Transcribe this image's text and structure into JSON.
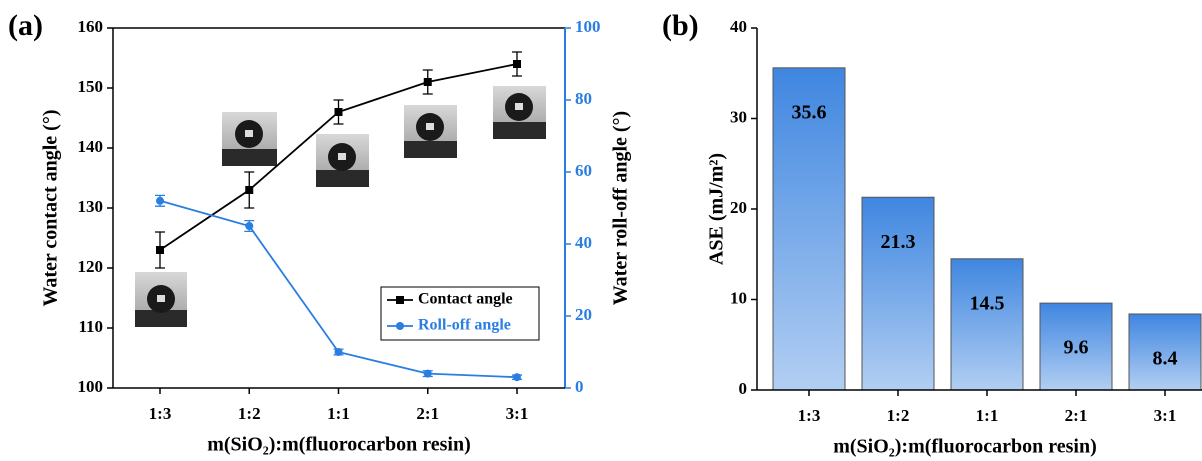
{
  "chart_data": [
    {
      "type": "line",
      "panel_label": "(a)",
      "x_label": "m(SiO₂):m(fluorocarbon resin)",
      "y_label": "Water contact angle (°)",
      "y2_label": "Water roll-off angle (°)",
      "categories": [
        "1:3",
        "1:2",
        "1:1",
        "2:1",
        "3:1"
      ],
      "ylim": [
        100,
        160
      ],
      "yticks": [
        100,
        110,
        120,
        130,
        140,
        150,
        160
      ],
      "y2lim": [
        0,
        100
      ],
      "y2ticks": [
        0,
        20,
        40,
        60,
        80,
        100
      ],
      "legend": "lower right",
      "series": [
        {
          "name": "Contact angle",
          "color": "#000000",
          "marker": "square",
          "values": [
            123,
            133,
            146,
            151,
            154
          ],
          "errors": [
            3,
            3,
            2,
            2,
            2
          ]
        },
        {
          "name": "Roll-off angle",
          "color": "#2a7de1",
          "marker": "circle",
          "axis": "y2",
          "values": [
            52,
            45,
            10,
            4,
            3
          ],
          "errors": [
            1.5,
            1.5,
            0.8,
            0.8,
            0.6
          ]
        }
      ]
    },
    {
      "type": "bar",
      "panel_label": "(b)",
      "x_label": "m(SiO₂):m(fluorocarbon resin)",
      "y_label": "ASE (mJ/m²)",
      "categories": [
        "1:3",
        "1:2",
        "1:1",
        "2:1",
        "3:1"
      ],
      "values": [
        35.6,
        21.3,
        14.5,
        9.6,
        8.4
      ],
      "color": "#3f86e0",
      "ylim": [
        0,
        40
      ],
      "yticks": [
        0,
        10,
        20,
        30,
        40
      ]
    }
  ]
}
